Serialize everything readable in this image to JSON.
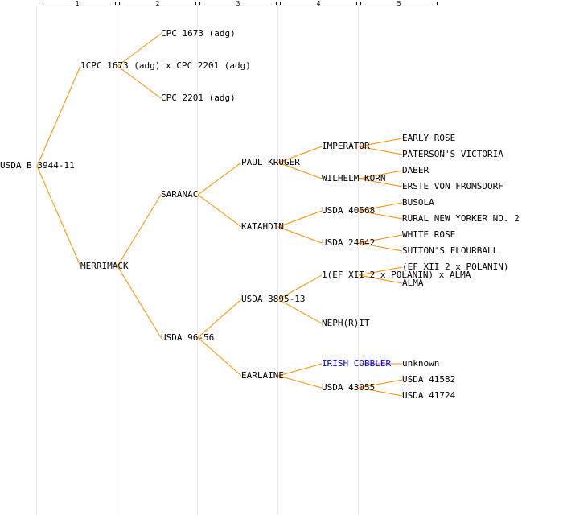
{
  "colors": {
    "line": "#ff8c00",
    "text": "#000000",
    "link": "#0000ee",
    "guide": "#e8e8e8"
  },
  "generations": [
    "1",
    "2",
    "3",
    "4",
    "5"
  ],
  "nodes": [
    {
      "id": "usda-b-3944-11",
      "label": "USDA B 3944-11",
      "generation": 0
    },
    {
      "id": "cross-cpc1673-cpc2201",
      "label": "1CPC 1673 (adg) x CPC 2201 (adg)",
      "generation": 1
    },
    {
      "id": "cpc-1673",
      "label": "CPC 1673 (adg)",
      "generation": 2
    },
    {
      "id": "cpc-2201",
      "label": "CPC 2201 (adg)",
      "generation": 2
    },
    {
      "id": "merrimack",
      "label": "MERRIMACK",
      "generation": 1
    },
    {
      "id": "saranac",
      "label": "SARANAC",
      "generation": 2
    },
    {
      "id": "paul-kruger",
      "label": "PAUL KRUGER",
      "generation": 3
    },
    {
      "id": "imperator",
      "label": "IMPERATOR",
      "generation": 4
    },
    {
      "id": "early-rose",
      "label": "EARLY ROSE",
      "generation": 5
    },
    {
      "id": "patersons-victoria",
      "label": "PATERSON'S VICTORIA",
      "generation": 5
    },
    {
      "id": "wilhelm-korn",
      "label": "WILHELM KORN",
      "generation": 4
    },
    {
      "id": "daber",
      "label": "DABER",
      "generation": 5
    },
    {
      "id": "erste-von-fromsdorf",
      "label": "ERSTE VON FROMSDORF",
      "generation": 5
    },
    {
      "id": "katahdin",
      "label": "KATAHDIN",
      "generation": 3
    },
    {
      "id": "usda-40568",
      "label": "USDA 40568",
      "generation": 4
    },
    {
      "id": "busola",
      "label": "BUSOLA",
      "generation": 5
    },
    {
      "id": "rural-new-yorker-no-2",
      "label": "RURAL NEW YORKER NO. 2",
      "generation": 5
    },
    {
      "id": "usda-24642",
      "label": "USDA 24642",
      "generation": 4
    },
    {
      "id": "white-rose",
      "label": "WHITE ROSE",
      "generation": 5
    },
    {
      "id": "suttons-flourball",
      "label": "SUTTON'S FLOURBALL",
      "generation": 5
    },
    {
      "id": "usda-96-56",
      "label": "USDA 96-56",
      "generation": 2
    },
    {
      "id": "usda-3895-13",
      "label": "USDA 3895-13",
      "generation": 3
    },
    {
      "id": "cross-ef-xii-alma",
      "label": "1(EF XII 2 x POLANIN) x ALMA",
      "generation": 4
    },
    {
      "id": "ef-xii-2-x-polanin",
      "label": "(EF XII 2 x POLANIN)",
      "generation": 5
    },
    {
      "id": "alma",
      "label": "ALMA",
      "generation": 5
    },
    {
      "id": "nephrit",
      "label": "NEPH(R)IT",
      "generation": 4
    },
    {
      "id": "earlaine",
      "label": "EARLAINE",
      "generation": 3
    },
    {
      "id": "irish-cobbler",
      "label": "IRISH COBBLER",
      "generation": 4,
      "link": true
    },
    {
      "id": "unknown",
      "label": "unknown",
      "generation": 5
    },
    {
      "id": "usda-43055",
      "label": "USDA 43055",
      "generation": 4
    },
    {
      "id": "usda-41582",
      "label": "USDA 41582",
      "generation": 5
    },
    {
      "id": "usda-41724",
      "label": "USDA 41724",
      "generation": 5
    }
  ],
  "edges": [
    [
      "usda-b-3944-11",
      "cross-cpc1673-cpc2201"
    ],
    [
      "usda-b-3944-11",
      "merrimack"
    ],
    [
      "cross-cpc1673-cpc2201",
      "cpc-1673"
    ],
    [
      "cross-cpc1673-cpc2201",
      "cpc-2201"
    ],
    [
      "merrimack",
      "saranac"
    ],
    [
      "merrimack",
      "usda-96-56"
    ],
    [
      "saranac",
      "paul-kruger"
    ],
    [
      "saranac",
      "katahdin"
    ],
    [
      "paul-kruger",
      "imperator"
    ],
    [
      "paul-kruger",
      "wilhelm-korn"
    ],
    [
      "imperator",
      "early-rose"
    ],
    [
      "imperator",
      "patersons-victoria"
    ],
    [
      "wilhelm-korn",
      "daber"
    ],
    [
      "wilhelm-korn",
      "erste-von-fromsdorf"
    ],
    [
      "katahdin",
      "usda-40568"
    ],
    [
      "katahdin",
      "usda-24642"
    ],
    [
      "usda-40568",
      "busola"
    ],
    [
      "usda-40568",
      "rural-new-yorker-no-2"
    ],
    [
      "usda-24642",
      "white-rose"
    ],
    [
      "usda-24642",
      "suttons-flourball"
    ],
    [
      "usda-96-56",
      "usda-3895-13"
    ],
    [
      "usda-96-56",
      "earlaine"
    ],
    [
      "usda-3895-13",
      "cross-ef-xii-alma"
    ],
    [
      "usda-3895-13",
      "nephrit"
    ],
    [
      "cross-ef-xii-alma",
      "ef-xii-2-x-polanin"
    ],
    [
      "cross-ef-xii-alma",
      "alma"
    ],
    [
      "earlaine",
      "irish-cobbler"
    ],
    [
      "earlaine",
      "usda-43055"
    ],
    [
      "irish-cobbler",
      "unknown"
    ],
    [
      "usda-43055",
      "usda-41582"
    ],
    [
      "usda-43055",
      "usda-41724"
    ]
  ]
}
